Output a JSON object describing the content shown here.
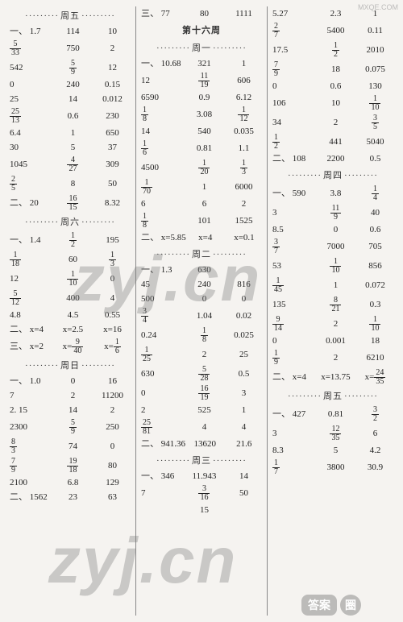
{
  "watermarks": {
    "w1": "zyj.cn",
    "w2": "zyj.cn",
    "topright": "MXQE.COM"
  },
  "stamp": {
    "pill": "答案",
    "circle": "圈"
  },
  "col1": {
    "h1": "周五",
    "rowsA": [
      {
        "a": "一、 1.7",
        "b": "114",
        "c": "10"
      },
      {
        "a": {
          "f": [
            "5",
            "33"
          ]
        },
        "b": "750",
        "c": "2"
      },
      {
        "a": "542",
        "b": {
          "f": [
            "5",
            "9"
          ]
        },
        "c": "12"
      },
      {
        "a": "0",
        "b": "240",
        "c": "0.15"
      },
      {
        "a": "25",
        "b": "14",
        "c": "0.012"
      },
      {
        "a": {
          "f": [
            "25",
            "13"
          ]
        },
        "b": "0.6",
        "c": "230"
      },
      {
        "a": "6.4",
        "b": "1",
        "c": "650"
      },
      {
        "a": "30",
        "b": "5",
        "c": "37"
      },
      {
        "a": "1045",
        "b": {
          "f": [
            "4",
            "27"
          ]
        },
        "c": "309"
      },
      {
        "a": {
          "f": [
            "2",
            "5"
          ]
        },
        "b": "8",
        "c": "50"
      },
      {
        "a": "二、 20",
        "b": {
          "f": [
            "16",
            "15"
          ]
        },
        "c": "8.32"
      }
    ],
    "h2": "周六",
    "rowsB": [
      {
        "a": "一、 1.4",
        "b": {
          "f": [
            "1",
            "2"
          ]
        },
        "c": "195"
      },
      {
        "a": {
          "f": [
            "1",
            "18"
          ]
        },
        "b": "60",
        "c": {
          "f": [
            "1",
            "3"
          ]
        }
      },
      {
        "a": "12",
        "b": {
          "f": [
            "1",
            "10"
          ]
        },
        "c": "0"
      },
      {
        "a": {
          "f": [
            "5",
            "12"
          ]
        },
        "b": "400",
        "c": "4"
      },
      {
        "a": "4.8",
        "b": "4.5",
        "c": "0.55"
      },
      {
        "a": "二、 x=4",
        "b": "x=2.5",
        "c": "x=16"
      },
      {
        "a": "三、 x=2",
        "b": {
          "pre": "x=",
          "f": [
            "9",
            "40"
          ]
        },
        "c": {
          "pre": "x=",
          "f": [
            "1",
            "6"
          ]
        }
      }
    ],
    "h3": "周日",
    "rowsC": [
      {
        "a": "一、 1.0",
        "b": "0",
        "c": "16"
      },
      {
        "a": "7",
        "b": "2",
        "c": "11200"
      },
      {
        "a": "2. 15",
        "b": "14",
        "c": "2"
      },
      {
        "a": "2300",
        "b": {
          "f": [
            "5",
            "9"
          ]
        },
        "c": "250"
      },
      {
        "a": {
          "f": [
            "8",
            "3"
          ]
        },
        "b": "74",
        "c": "0"
      },
      {
        "a": {
          "f": [
            "7",
            "9"
          ]
        },
        "b": {
          "f": [
            "19",
            "18"
          ]
        },
        "c": "80"
      },
      {
        "a": "2100",
        "b": "6.8",
        "c": "129"
      },
      {
        "a": "二、 1562",
        "b": "23",
        "c": "63"
      }
    ]
  },
  "col2": {
    "rowTop": {
      "a": "三、 77",
      "b": "80",
      "c": "1111"
    },
    "title": "第十六周",
    "h1": "周一",
    "rowsA": [
      {
        "a": "一、 10.68",
        "b": "321",
        "c": "1"
      },
      {
        "a": "12",
        "b": {
          "f": [
            "11",
            "19"
          ]
        },
        "c": "606"
      },
      {
        "a": "6590",
        "b": "0.9",
        "c": "6.12"
      },
      {
        "a": {
          "f": [
            "1",
            "8"
          ]
        },
        "b": "3.08",
        "c": {
          "f": [
            "1",
            "12"
          ]
        }
      },
      {
        "a": "14",
        "b": "540",
        "c": "0.035"
      },
      {
        "a": {
          "f": [
            "1",
            "6"
          ]
        },
        "b": "0.81",
        "c": "1.1"
      },
      {
        "a": "4500",
        "b": {
          "f": [
            "1",
            "20"
          ]
        },
        "c": {
          "f": [
            "1",
            "3"
          ]
        }
      },
      {
        "a": {
          "f": [
            "1",
            "70"
          ]
        },
        "b": "1",
        "c": "6000"
      },
      {
        "a": "6",
        "b": "6",
        "c": "2"
      },
      {
        "a": {
          "f": [
            "1",
            "8"
          ]
        },
        "b": "101",
        "c": "1525"
      },
      {
        "a": "二、 x=5.85",
        "b": "x=4",
        "c": "x=0.1"
      }
    ],
    "h2": "周二",
    "rowsB": [
      {
        "a": "一、 1.3",
        "b": "630",
        "c": ""
      },
      {
        "a": "45",
        "b": "240",
        "c": "816"
      },
      {
        "a": "500",
        "b": "0",
        "c": "0"
      },
      {
        "a": {
          "f": [
            "3",
            "4"
          ]
        },
        "b": "1.04",
        "c": "0.02"
      },
      {
        "a": "0.24",
        "b": {
          "f": [
            "1",
            "8"
          ]
        },
        "c": "0.025"
      },
      {
        "a": {
          "f": [
            "1",
            "25"
          ]
        },
        "b": "2",
        "c": "25"
      },
      {
        "a": "630",
        "b": {
          "f": [
            "5",
            "28"
          ]
        },
        "c": "0.5"
      },
      {
        "a": "0",
        "b": {
          "f": [
            "16",
            "19"
          ]
        },
        "c": "3"
      },
      {
        "a": "2",
        "b": "525",
        "c": "1"
      },
      {
        "a": {
          "f": [
            "25",
            "81"
          ]
        },
        "b": "4",
        "c": "4"
      },
      {
        "a": "二、 941.36",
        "b": "13620",
        "c": "21.6"
      }
    ],
    "h3": "周三",
    "rowsC": [
      {
        "a": "一、 346",
        "b": "11.943",
        "c": "14"
      },
      {
        "a": "7",
        "b": {
          "f": [
            "3",
            "16"
          ]
        },
        "c": "50"
      },
      {
        "a": "",
        "b": "15",
        "c": ""
      }
    ]
  },
  "col3": {
    "rowsA": [
      {
        "a": "5.27",
        "b": "2.3",
        "c": "1"
      },
      {
        "a": {
          "f": [
            "2",
            "7"
          ]
        },
        "b": "5400",
        "c": "0.11"
      },
      {
        "a": "17.5",
        "b": {
          "f": [
            "1",
            "2"
          ]
        },
        "c": "2010"
      },
      {
        "a": {
          "f": [
            "7",
            "9"
          ]
        },
        "b": "18",
        "c": "0.075"
      },
      {
        "a": "0",
        "b": "0.6",
        "c": "130"
      },
      {
        "a": "106",
        "b": "10",
        "c": {
          "f": [
            "1",
            "10"
          ]
        }
      },
      {
        "a": "34",
        "b": "2",
        "c": {
          "f": [
            "3",
            "5"
          ]
        }
      },
      {
        "a": {
          "f": [
            "1",
            "2"
          ]
        },
        "b": "441",
        "c": "5040"
      },
      {
        "a": "二、 108",
        "b": "2200",
        "c": "0.5"
      }
    ],
    "h1": "周四",
    "rowsB": [
      {
        "a": "一、 590",
        "b": "3.8",
        "c": {
          "f": [
            "1",
            "4"
          ]
        }
      },
      {
        "a": "3",
        "b": {
          "f": [
            "11",
            "9"
          ]
        },
        "c": "40"
      },
      {
        "a": "8.5",
        "b": "0",
        "c": "0.6"
      },
      {
        "a": {
          "f": [
            "3",
            "7"
          ]
        },
        "b": "7000",
        "c": "705"
      },
      {
        "a": "53",
        "b": {
          "f": [
            "1",
            "10"
          ]
        },
        "c": "856"
      },
      {
        "a": {
          "f": [
            "1",
            "45"
          ]
        },
        "b": "1",
        "c": "0.072"
      },
      {
        "a": "135",
        "b": {
          "f": [
            "8",
            "21"
          ]
        },
        "c": "0.3"
      },
      {
        "a": {
          "f": [
            "9",
            "14"
          ]
        },
        "b": "2",
        "c": {
          "f": [
            "1",
            "10"
          ]
        }
      },
      {
        "a": "0",
        "b": "0.001",
        "c": "18"
      },
      {
        "a": {
          "f": [
            "1",
            "9"
          ]
        },
        "b": "2",
        "c": "6210"
      },
      {
        "a": "二、 x=4",
        "b": "x=13.75",
        "c": {
          "pre": "x=",
          "f": [
            "24",
            "35"
          ]
        }
      }
    ],
    "h2": "周五",
    "rowsC": [
      {
        "a": "一、 427",
        "b": "0.81",
        "c": {
          "f": [
            "3",
            "2"
          ]
        }
      },
      {
        "a": "3",
        "b": {
          "f": [
            "12",
            "35"
          ]
        },
        "c": "6"
      },
      {
        "a": "8.3",
        "b": "5",
        "c": "4.2"
      },
      {
        "a": {
          "f": [
            "1",
            "7"
          ]
        },
        "b": "3800",
        "c": "30.9"
      }
    ]
  }
}
